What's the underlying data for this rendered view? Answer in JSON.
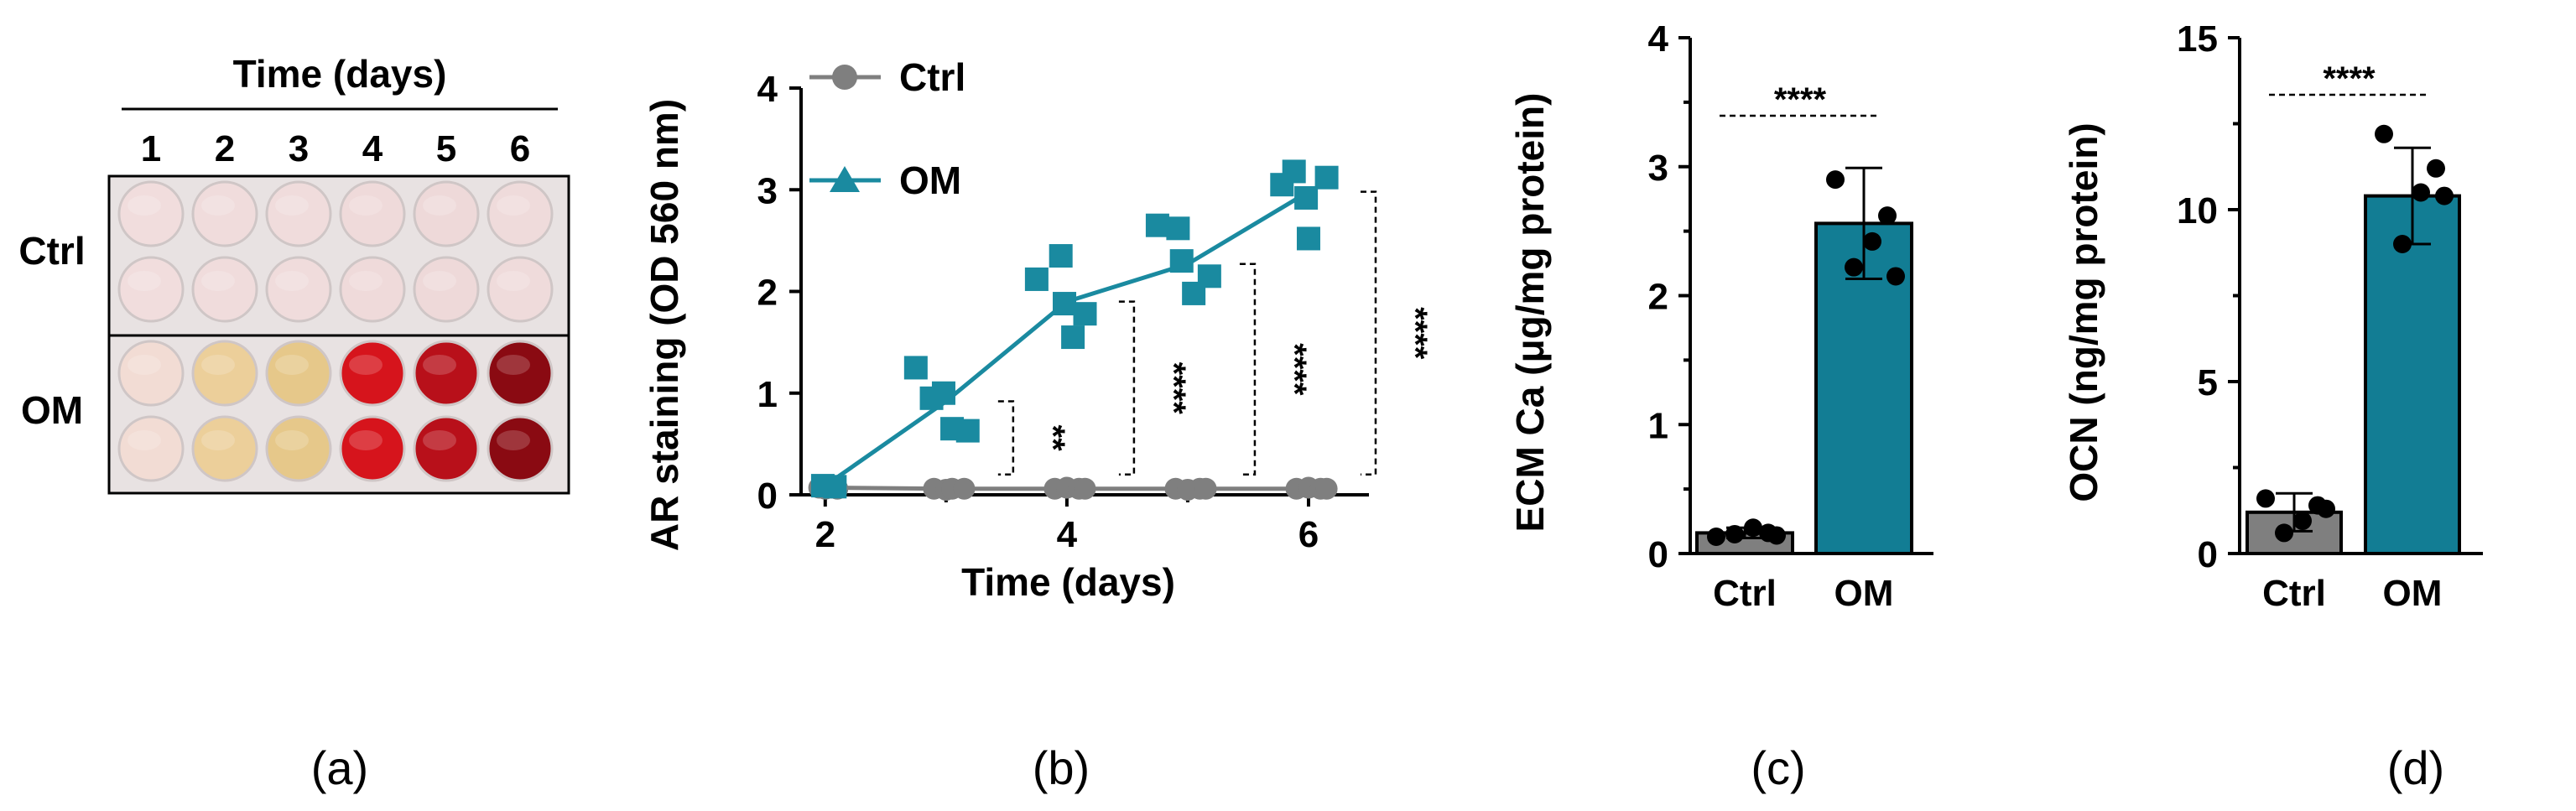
{
  "colors": {
    "ctrl": "#7f7f7f",
    "om": "#1a8aa0",
    "om_bar": "#127d94",
    "axis": "#000000",
    "plate_bg": "#e8e2e2"
  },
  "panels": {
    "a": {
      "caption": "(a)",
      "title": "Time (days)",
      "columns": [
        "1",
        "2",
        "3",
        "4",
        "5",
        "6"
      ],
      "rows": [
        "Ctrl",
        "OM"
      ],
      "well_colors": {
        "Ctrl": [
          "#f1dddd",
          "#f0dcdc",
          "#f0dcdc",
          "#efdada",
          "#eed9d9",
          "#efdbdb"
        ],
        "OM": [
          "#f2dcd4",
          "#eccf9a",
          "#e6c88a",
          "#d6141c",
          "#b8101a",
          "#8a0a12"
        ]
      }
    },
    "b": {
      "caption": "(b)"
    },
    "c": {
      "caption": "(c)"
    },
    "d": {
      "caption": "(d)"
    }
  },
  "chart_data": [
    {
      "id": "b",
      "type": "scatter",
      "title": "",
      "xlabel": "Time (days)",
      "ylabel": "AR staining (OD 560 nm)",
      "xlim": [
        1.8,
        6.5
      ],
      "ylim": [
        0,
        4
      ],
      "xticks": [
        "2",
        "4",
        "6"
      ],
      "yticks": [
        "0",
        "1",
        "2",
        "3",
        "4"
      ],
      "legend": [
        "Ctrl",
        "OM"
      ],
      "series": [
        {
          "name": "Ctrl",
          "marker": "circle",
          "mean_x": [
            2,
            3,
            4,
            5,
            6
          ],
          "mean_y": [
            0.07,
            0.06,
            0.06,
            0.06,
            0.06
          ],
          "points": [
            [
              1.95,
              0.07
            ],
            [
              2.0,
              0.06
            ],
            [
              2.05,
              0.07
            ],
            [
              2.1,
              0.06
            ],
            [
              2.9,
              0.06
            ],
            [
              3.0,
              0.05
            ],
            [
              3.05,
              0.06
            ],
            [
              3.15,
              0.06
            ],
            [
              3.9,
              0.06
            ],
            [
              4.0,
              0.07
            ],
            [
              4.1,
              0.06
            ],
            [
              4.15,
              0.06
            ],
            [
              4.9,
              0.06
            ],
            [
              5.0,
              0.05
            ],
            [
              5.1,
              0.06
            ],
            [
              5.15,
              0.06
            ],
            [
              5.9,
              0.06
            ],
            [
              6.0,
              0.07
            ],
            [
              6.1,
              0.06
            ],
            [
              6.15,
              0.06
            ]
          ]
        },
        {
          "name": "OM",
          "marker": "square",
          "mean_x": [
            2,
            3,
            4,
            5,
            6
          ],
          "mean_y": [
            0.09,
            0.92,
            1.9,
            2.27,
            2.98
          ],
          "points": [
            [
              1.98,
              0.09
            ],
            [
              2.08,
              0.08
            ],
            [
              2.75,
              1.25
            ],
            [
              2.88,
              0.95
            ],
            [
              2.98,
              1.0
            ],
            [
              3.05,
              0.65
            ],
            [
              3.18,
              0.63
            ],
            [
              3.75,
              2.12
            ],
            [
              3.95,
              2.35
            ],
            [
              3.98,
              1.88
            ],
            [
              4.05,
              1.55
            ],
            [
              4.15,
              1.78
            ],
            [
              4.75,
              2.65
            ],
            [
              4.92,
              2.62
            ],
            [
              4.95,
              2.3
            ],
            [
              5.05,
              1.98
            ],
            [
              5.18,
              2.15
            ],
            [
              5.78,
              3.05
            ],
            [
              5.88,
              3.18
            ],
            [
              5.98,
              2.92
            ],
            [
              6.0,
              2.52
            ],
            [
              6.15,
              3.12
            ]
          ]
        }
      ],
      "significance": [
        {
          "x": 3,
          "label": "**"
        },
        {
          "x": 4,
          "label": "****"
        },
        {
          "x": 5,
          "label": "****"
        },
        {
          "x": 6,
          "label": "****"
        }
      ]
    },
    {
      "id": "c",
      "type": "bar",
      "title": "",
      "xlabel": "",
      "ylabel": "ECM Ca (μg/mg protein)",
      "ylim": [
        0,
        4
      ],
      "yticks": [
        "0",
        "1",
        "2",
        "3",
        "4"
      ],
      "categories": [
        "Ctrl",
        "OM"
      ],
      "values": [
        0.16,
        2.56
      ],
      "errors": [
        0.04,
        0.43
      ],
      "points": [
        [
          0.13,
          0.16,
          0.2,
          0.15,
          0.14
        ],
        [
          2.9,
          2.62,
          2.42,
          2.22,
          2.15
        ]
      ],
      "significance": "****"
    },
    {
      "id": "d",
      "type": "bar",
      "title": "",
      "xlabel": "",
      "ylabel": "OCN (ng/mg protein)",
      "ylim": [
        0,
        15
      ],
      "yticks": [
        "0",
        "5",
        "10",
        "15"
      ],
      "categories": [
        "Ctrl",
        "OM"
      ],
      "values": [
        1.2,
        10.4
      ],
      "errors": [
        0.55,
        1.4
      ],
      "points": [
        [
          1.6,
          1.4,
          0.95,
          0.6,
          1.3
        ],
        [
          12.2,
          11.2,
          10.5,
          9.0,
          10.4
        ]
      ],
      "significance": "****"
    }
  ]
}
